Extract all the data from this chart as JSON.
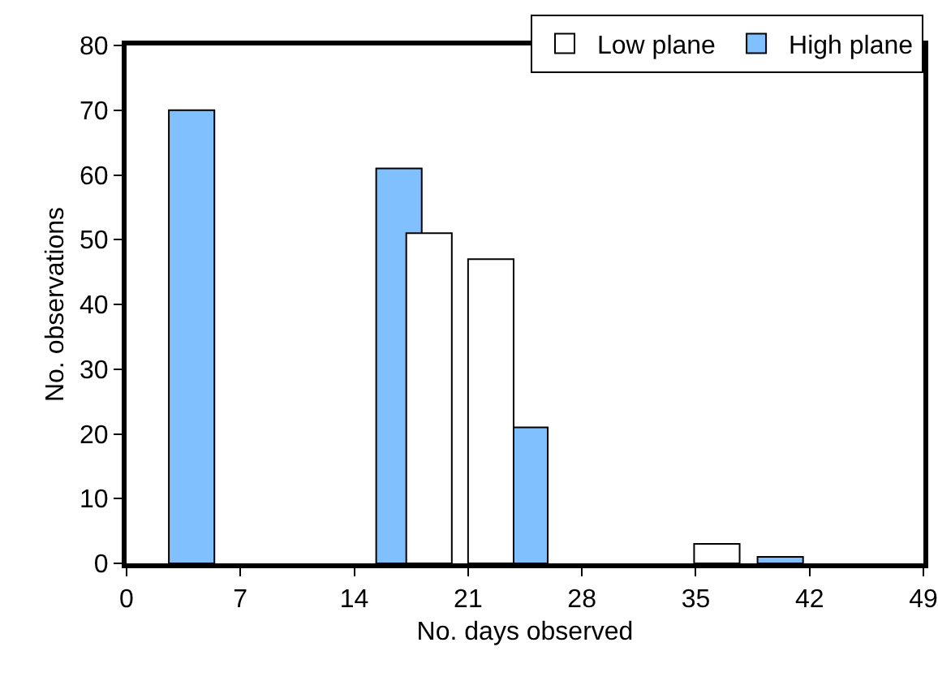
{
  "chart_data": {
    "type": "bar",
    "xlabel": "No. days observed",
    "ylabel": "No. observations",
    "series": [
      {
        "name": "High plane",
        "color": "#80c0ff",
        "x": [
          4,
          16.75,
          24.5,
          40.2
        ],
        "values": [
          70,
          61,
          21,
          1
        ]
      },
      {
        "name": "Low plane",
        "color": "#ffffff",
        "x": [
          18.6,
          22.4,
          36.3
        ],
        "values": [
          51,
          47,
          3
        ]
      }
    ],
    "xlim": [
      0,
      49
    ],
    "xticks": [
      0,
      7,
      14,
      21,
      28,
      35,
      42,
      49
    ],
    "ylim": [
      0,
      80
    ],
    "yticks": [
      0,
      10,
      20,
      30,
      40,
      50,
      60,
      70,
      80
    ],
    "grid": false,
    "legend": "top right"
  }
}
